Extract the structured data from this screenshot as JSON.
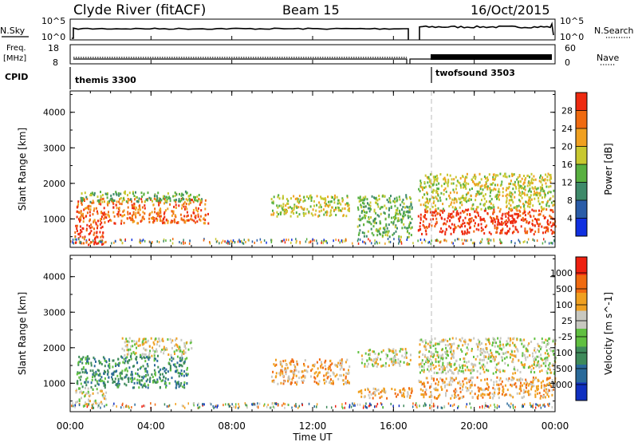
{
  "header": {
    "station": "Clyde River (fitACF)",
    "beam": "Beam 15",
    "date": "16/Oct/2015"
  },
  "top_panels": {
    "nsky_label": "N.Sky",
    "nsky_scale_top": "10^5",
    "nsky_scale_bottom": "10^0",
    "nsearch_label": "N.Search",
    "nsearch_scale_top": "10^5",
    "nsearch_scale_bottom": "10^0",
    "freq_label_1": "Freq.",
    "freq_label_2": "[MHz]",
    "freq_top": "18",
    "freq_bottom": "8",
    "nave_label": "Nave",
    "nave_top": "60",
    "nave_bottom": "0",
    "cpid_label": "CPID",
    "cpid_1": "themis 3300",
    "cpid_2": "twofsound 3503"
  },
  "time_axis": {
    "label": "Time UT",
    "ticks": [
      "00:00",
      "04:00",
      "08:00",
      "12:00",
      "16:00",
      "20:00",
      "00:00"
    ]
  },
  "chart_data": [
    {
      "type": "heatmap",
      "title": "Power",
      "xlabel": "Time UT",
      "ylabel": "Slant Range [km]",
      "y_ticks": [
        "1000",
        "2000",
        "3000",
        "4000"
      ],
      "ylim": [
        200,
        4600
      ],
      "xlim_hours": [
        0,
        24
      ],
      "colorbar_label": "Power [dB]",
      "colorbar_ticks": [
        "4",
        "8",
        "12",
        "16",
        "20",
        "24",
        "28"
      ],
      "colors": [
        "#1030e0",
        "#2a5ca8",
        "#3e8a6a",
        "#58b040",
        "#c8c830",
        "#f0a020",
        "#f06a10",
        "#ee2a10"
      ],
      "regions": [
        {
          "t_start": 0.2,
          "t_end": 1.6,
          "r_min": 300,
          "r_max": 900,
          "level": 7
        },
        {
          "t_start": 0.3,
          "t_end": 6.8,
          "r_min": 900,
          "r_max": 1600,
          "level": 6
        },
        {
          "t_start": 0.5,
          "t_end": 6.5,
          "r_min": 1500,
          "r_max": 1800,
          "level": 3
        },
        {
          "t_start": 9.9,
          "t_end": 13.8,
          "r_min": 1100,
          "r_max": 1700,
          "level": 4
        },
        {
          "t_start": 14.2,
          "t_end": 16.9,
          "r_min": 500,
          "r_max": 1700,
          "level": 3
        },
        {
          "t_start": 17.2,
          "t_end": 24.0,
          "r_min": 600,
          "r_max": 1300,
          "level": 7
        },
        {
          "t_start": 17.2,
          "t_end": 24.0,
          "r_min": 1300,
          "r_max": 2300,
          "level": 4
        }
      ]
    },
    {
      "type": "heatmap",
      "title": "Velocity",
      "xlabel": "Time UT",
      "ylabel": "Slant Range [km]",
      "y_ticks": [
        "1000",
        "2000",
        "3000",
        "4000"
      ],
      "ylim": [
        200,
        4600
      ],
      "xlim_hours": [
        0,
        24
      ],
      "colorbar_label": "Velocity [m s^-1]",
      "colorbar_ticks": [
        "1000",
        "500",
        "100",
        "25",
        "-25",
        "-100",
        "-500",
        "-1000"
      ],
      "colors": [
        "#1030c0",
        "#2a6a9a",
        "#3e8a5a",
        "#60c040",
        "#c8c8c0",
        "#f0a020",
        "#f06a10",
        "#ee2010"
      ],
      "regions": [
        {
          "t_start": 0.2,
          "t_end": 1.8,
          "r_min": 400,
          "r_max": 900,
          "level": 4
        },
        {
          "t_start": 0.3,
          "t_end": 5.8,
          "r_min": 900,
          "r_max": 1800,
          "level": 2
        },
        {
          "t_start": 2.5,
          "t_end": 6.0,
          "r_min": 1800,
          "r_max": 2300,
          "level": 4
        },
        {
          "t_start": 9.9,
          "t_end": 13.8,
          "r_min": 1000,
          "r_max": 1700,
          "level": 5
        },
        {
          "t_start": 14.2,
          "t_end": 16.9,
          "r_min": 600,
          "r_max": 900,
          "level": 5
        },
        {
          "t_start": 14.2,
          "t_end": 16.9,
          "r_min": 1500,
          "r_max": 2000,
          "level": 4
        },
        {
          "t_start": 17.2,
          "t_end": 24.0,
          "r_min": 600,
          "r_max": 1200,
          "level": 5
        },
        {
          "t_start": 17.2,
          "t_end": 24.0,
          "r_min": 1300,
          "r_max": 2300,
          "level": 4
        }
      ]
    }
  ]
}
